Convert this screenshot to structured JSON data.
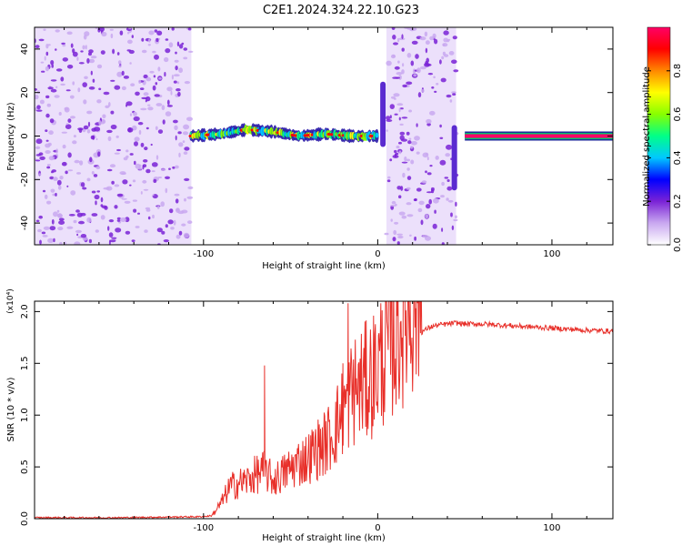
{
  "title": "C2E1.2024.324.22.10.G23",
  "chart_data": [
    {
      "type": "heatmap",
      "xlabel": "Height of straight line (km)",
      "ylabel": "Frequency (Hz)",
      "xlim": [
        -197,
        135
      ],
      "ylim": [
        -50,
        50
      ],
      "x_ticks": [
        -100,
        0,
        100
      ],
      "x_tick_labels": [
        "-100",
        "0",
        "100"
      ],
      "y_ticks": [
        -40,
        -20,
        0,
        20,
        40
      ],
      "y_tick_labels": [
        "-40",
        "-20",
        "0",
        "20",
        "40"
      ],
      "grid": false,
      "colorbar": {
        "label": "Normalized spectral amplitude",
        "range": [
          0,
          1
        ],
        "ticks": [
          0.0,
          0.2,
          0.4,
          0.6,
          0.8
        ],
        "tick_labels": [
          "0.0",
          "0.2",
          "0.4",
          "0.6",
          "0.8"
        ],
        "colors": [
          "#ffffff",
          "#c9a8f0",
          "#7a22d6",
          "#0000ff",
          "#00c8ff",
          "#00ff88",
          "#88ff00",
          "#ffff00",
          "#ff8800",
          "#ff0000",
          "#ff0066"
        ]
      },
      "regions": [
        {
          "x_range": [
            -197,
            -107
          ],
          "description": "noise",
          "amplitude": 0.12
        },
        {
          "x_range": [
            -107,
            0
          ],
          "center_freq": [
            [
              -107,
              0
            ],
            [
              -90,
              1
            ],
            [
              -75,
              3
            ],
            [
              -60,
              2
            ],
            [
              -45,
              0
            ],
            [
              -30,
              1
            ],
            [
              -15,
              0
            ],
            [
              0,
              0
            ]
          ],
          "amplitude": 0.6
        },
        {
          "x_range": [
            5,
            45
          ],
          "description": "noise",
          "amplitude": 0.12
        },
        {
          "x_range": [
            50,
            135
          ],
          "center_freq": [
            [
              50,
              0
            ],
            [
              135,
              0
            ]
          ],
          "amplitude": 0.95
        }
      ],
      "spikes": [
        {
          "x": 3,
          "freq_range": [
            -5,
            25
          ]
        },
        {
          "x": 44,
          "freq_range": [
            -25,
            5
          ]
        }
      ]
    },
    {
      "type": "line",
      "xlabel": "Height of straight line (km)",
      "ylabel": "SNR (10 * v/v)",
      "y_scale_label": "(x10⁴)",
      "xlim": [
        -197,
        135
      ],
      "ylim": [
        0,
        2.1
      ],
      "x_ticks": [
        -100,
        0,
        100
      ],
      "x_tick_labels": [
        "-100",
        "0",
        "100"
      ],
      "y_ticks": [
        0.0,
        0.5,
        1.0,
        1.5,
        2.0
      ],
      "y_tick_labels": [
        "0.0",
        "0.5",
        "1.0",
        "1.5",
        "2.0"
      ],
      "grid": false,
      "line_color": "#e8302a",
      "series": [
        {
          "x": [
            -197,
            -150,
            -100,
            -95,
            -90,
            -85,
            -80,
            -75,
            -70,
            -65,
            -60,
            -55,
            -50,
            -45,
            -40,
            -35,
            -30,
            -25,
            -20,
            -15,
            -10,
            -5,
            0,
            5,
            10,
            15,
            20,
            25,
            30,
            35,
            40,
            45,
            50,
            60,
            70,
            80,
            90,
            100,
            110,
            120,
            135
          ],
          "values": [
            0.01,
            0.01,
            0.02,
            0.03,
            0.12,
            0.25,
            0.28,
            0.3,
            0.35,
            0.38,
            0.3,
            0.35,
            0.4,
            0.45,
            0.48,
            0.55,
            0.6,
            0.7,
            0.85,
            1.0,
            1.05,
            1.1,
            1.2,
            1.35,
            1.45,
            1.6,
            1.72,
            1.8,
            1.85,
            1.87,
            1.88,
            1.89,
            1.88,
            1.88,
            1.87,
            1.86,
            1.85,
            1.84,
            1.83,
            1.82,
            1.81
          ],
          "spikes": [
            {
              "x": -65,
              "y": 1.48
            },
            {
              "x": -17,
              "y": 2.08
            },
            {
              "x": -20,
              "y": 1.5
            }
          ]
        }
      ]
    }
  ]
}
